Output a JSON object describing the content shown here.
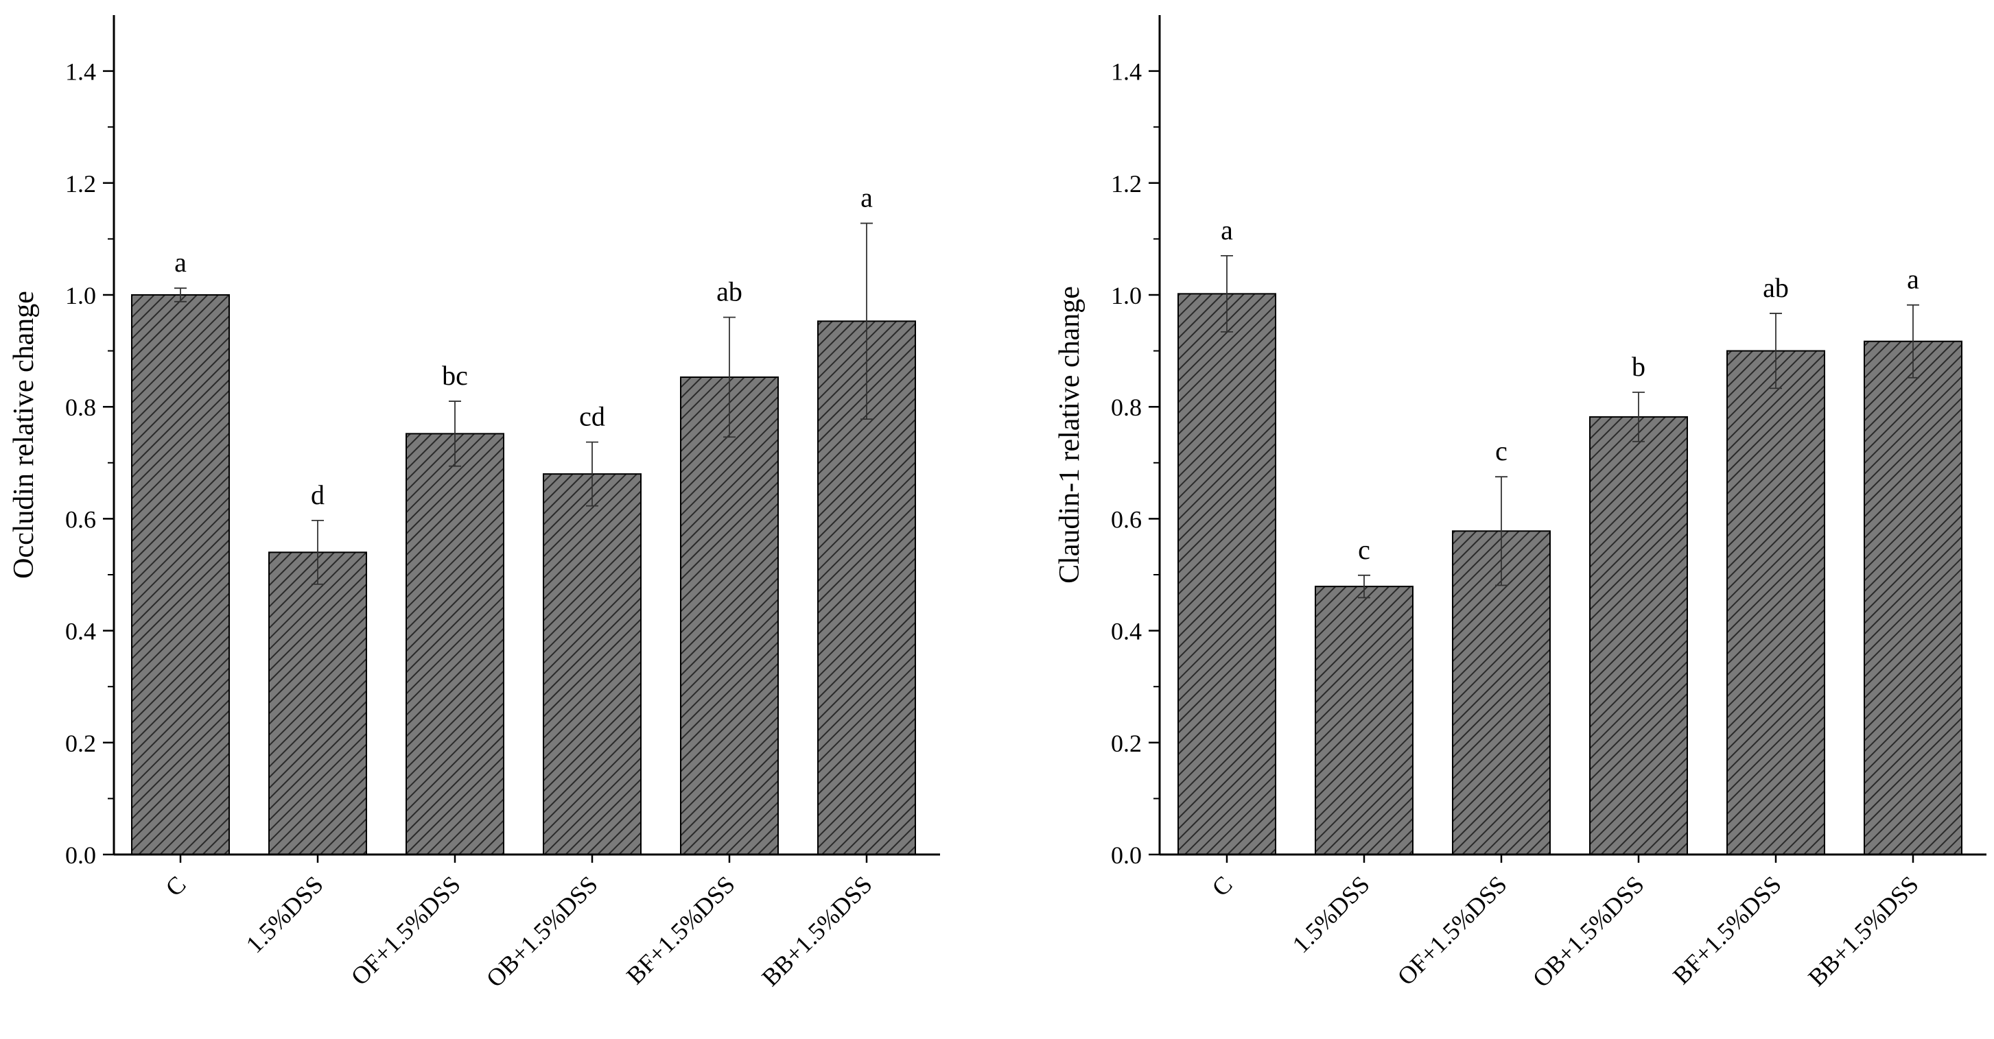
{
  "colors": {
    "bar_fill": "#7a7a7a",
    "hatch": "#2a2a2a",
    "axis": "#000000"
  },
  "chart_data": [
    {
      "type": "bar",
      "ylabel": "Occludin relative change",
      "xlabel": "",
      "ylim": [
        0,
        1.5
      ],
      "yticks": [
        "0.0",
        "0.2",
        "0.4",
        "0.6",
        "0.8",
        "1.0",
        "1.2",
        "1.4"
      ],
      "categories": [
        "C",
        "1.5%DSS",
        "OF+1.5%DSS",
        "OB+1.5%DSS",
        "BF+1.5%DSS",
        "BB+1.5%DSS"
      ],
      "values": [
        1.0,
        0.54,
        0.752,
        0.68,
        0.853,
        0.953
      ],
      "errors": [
        0.012,
        0.057,
        0.058,
        0.057,
        0.107,
        0.175
      ],
      "significance": [
        "a",
        "d",
        "bc",
        "cd",
        "ab",
        "a"
      ],
      "grid": false,
      "pattern": "diagonal-hatch"
    },
    {
      "type": "bar",
      "ylabel": "Claudin-1 relative change",
      "xlabel": "",
      "ylim": [
        0,
        1.5
      ],
      "yticks": [
        "0.0",
        "0.2",
        "0.4",
        "0.6",
        "0.8",
        "1.0",
        "1.2",
        "1.4"
      ],
      "categories": [
        "C",
        "1.5%DSS",
        "OF+1.5%DSS",
        "OB+1.5%DSS",
        "BF+1.5%DSS",
        "BB+1.5%DSS"
      ],
      "values": [
        1.002,
        0.479,
        0.578,
        0.782,
        0.9,
        0.917
      ],
      "errors": [
        0.068,
        0.02,
        0.097,
        0.044,
        0.067,
        0.065
      ],
      "significance": [
        "a",
        "c",
        "c",
        "b",
        "ab",
        "a"
      ],
      "grid": false,
      "pattern": "diagonal-hatch"
    }
  ]
}
